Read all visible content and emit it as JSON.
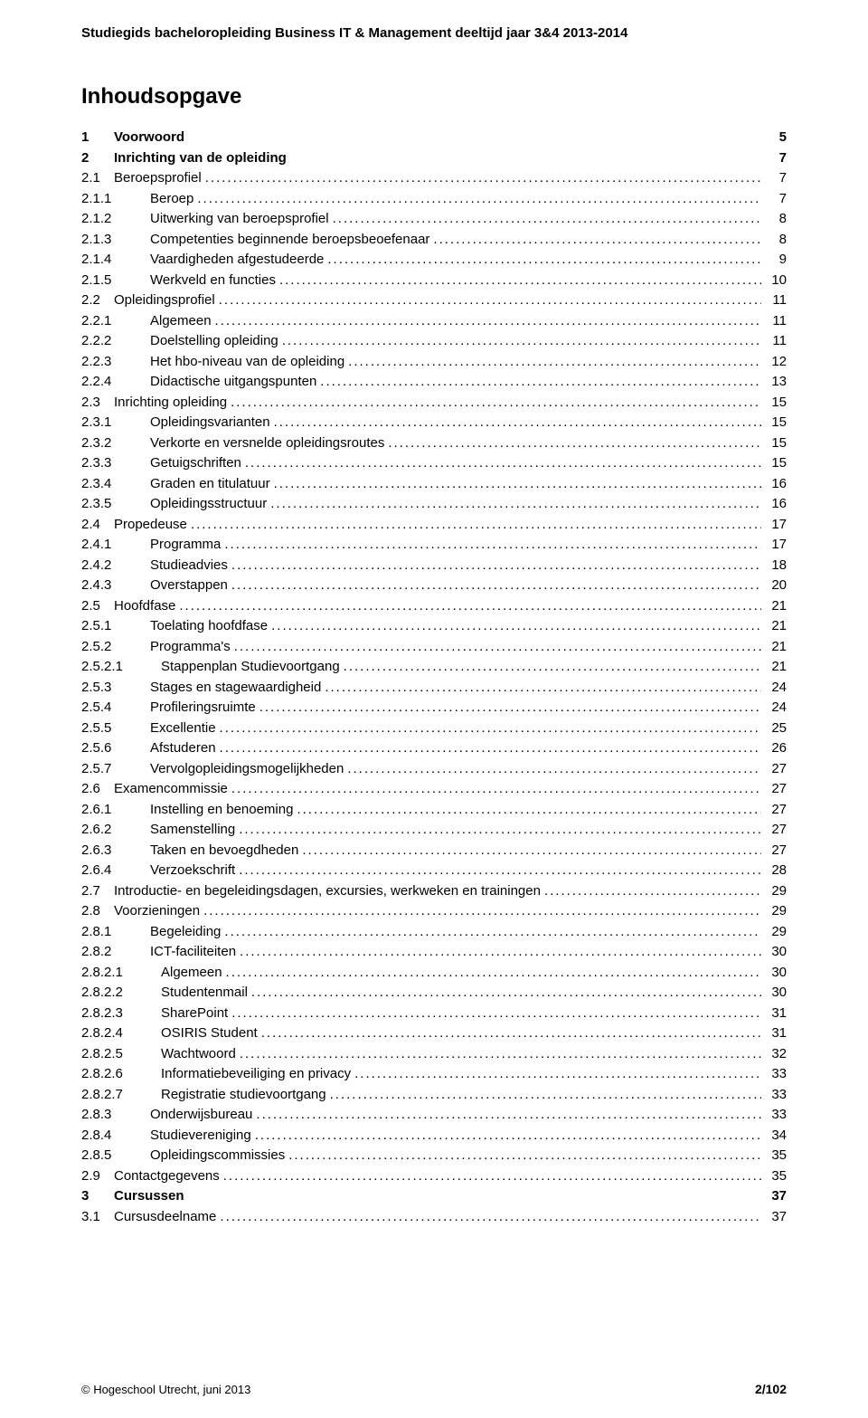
{
  "header": "Studiegids bacheloropleiding Business IT & Management deeltijd jaar 3&4 2013-2014",
  "toc_title": "Inhoudsopgave",
  "footer_left": "© Hogeschool Utrecht, juni 2013",
  "footer_right": "2/102",
  "entries": [
    {
      "num": "1",
      "label": "Voorwoord",
      "page": "5",
      "bold": true,
      "level": 0,
      "leader": false
    },
    {
      "num": "2",
      "label": "Inrichting van de opleiding",
      "page": "7",
      "bold": true,
      "level": 0,
      "leader": false
    },
    {
      "num": "2.1",
      "label": "Beroepsprofiel",
      "page": "7",
      "bold": false,
      "level": 1,
      "leader": true
    },
    {
      "num": "2.1.1",
      "label": "Beroep",
      "page": "7",
      "bold": false,
      "level": 2,
      "leader": true
    },
    {
      "num": "2.1.2",
      "label": "Uitwerking van beroepsprofiel",
      "page": "8",
      "bold": false,
      "level": 2,
      "leader": true
    },
    {
      "num": "2.1.3",
      "label": "Competenties beginnende beroepsbeoefenaar",
      "page": "8",
      "bold": false,
      "level": 2,
      "leader": true
    },
    {
      "num": "2.1.4",
      "label": "Vaardigheden afgestudeerde",
      "page": "9",
      "bold": false,
      "level": 2,
      "leader": true
    },
    {
      "num": "2.1.5",
      "label": "Werkveld en functies",
      "page": "10",
      "bold": false,
      "level": 2,
      "leader": true
    },
    {
      "num": "2.2",
      "label": "Opleidingsprofiel",
      "page": "11",
      "bold": false,
      "level": 1,
      "leader": true
    },
    {
      "num": "2.2.1",
      "label": "Algemeen",
      "page": "11",
      "bold": false,
      "level": 2,
      "leader": true
    },
    {
      "num": "2.2.2",
      "label": "Doelstelling opleiding",
      "page": "11",
      "bold": false,
      "level": 2,
      "leader": true
    },
    {
      "num": "2.2.3",
      "label": "Het hbo-niveau van de opleiding",
      "page": "12",
      "bold": false,
      "level": 2,
      "leader": true
    },
    {
      "num": "2.2.4",
      "label": "Didactische uitgangspunten",
      "page": "13",
      "bold": false,
      "level": 2,
      "leader": true
    },
    {
      "num": "2.3",
      "label": "Inrichting opleiding",
      "page": "15",
      "bold": false,
      "level": 1,
      "leader": true
    },
    {
      "num": "2.3.1",
      "label": "Opleidingsvarianten",
      "page": "15",
      "bold": false,
      "level": 2,
      "leader": true
    },
    {
      "num": "2.3.2",
      "label": "Verkorte en versnelde opleidingsroutes",
      "page": "15",
      "bold": false,
      "level": 2,
      "leader": true
    },
    {
      "num": "2.3.3",
      "label": "Getuigschriften",
      "page": "15",
      "bold": false,
      "level": 2,
      "leader": true
    },
    {
      "num": "2.3.4",
      "label": "Graden en titulatuur",
      "page": "16",
      "bold": false,
      "level": 2,
      "leader": true
    },
    {
      "num": "2.3.5",
      "label": "Opleidingsstructuur",
      "page": "16",
      "bold": false,
      "level": 2,
      "leader": true
    },
    {
      "num": "2.4",
      "label": "Propedeuse",
      "page": "17",
      "bold": false,
      "level": 1,
      "leader": true
    },
    {
      "num": "2.4.1",
      "label": "Programma",
      "page": "17",
      "bold": false,
      "level": 2,
      "leader": true
    },
    {
      "num": "2.4.2",
      "label": "Studieadvies",
      "page": "18",
      "bold": false,
      "level": 2,
      "leader": true
    },
    {
      "num": "2.4.3",
      "label": "Overstappen",
      "page": "20",
      "bold": false,
      "level": 2,
      "leader": true
    },
    {
      "num": "2.5",
      "label": "Hoofdfase",
      "page": "21",
      "bold": false,
      "level": 1,
      "leader": true
    },
    {
      "num": "2.5.1",
      "label": "Toelating hoofdfase",
      "page": "21",
      "bold": false,
      "level": 2,
      "leader": true
    },
    {
      "num": "2.5.2",
      "label": "Programma's",
      "page": "21",
      "bold": false,
      "level": 2,
      "leader": true
    },
    {
      "num": "2.5.2.1",
      "label": "Stappenplan Studievoortgang",
      "page": "21",
      "bold": false,
      "level": 3,
      "leader": true
    },
    {
      "num": "2.5.3",
      "label": "Stages en stagewaardigheid",
      "page": "24",
      "bold": false,
      "level": 2,
      "leader": true
    },
    {
      "num": "2.5.4",
      "label": "Profileringsruimte",
      "page": "24",
      "bold": false,
      "level": 2,
      "leader": true
    },
    {
      "num": "2.5.5",
      "label": "Excellentie",
      "page": "25",
      "bold": false,
      "level": 2,
      "leader": true
    },
    {
      "num": "2.5.6",
      "label": "Afstuderen",
      "page": "26",
      "bold": false,
      "level": 2,
      "leader": true
    },
    {
      "num": "2.5.7",
      "label": "Vervolgopleidingsmogelijkheden",
      "page": "27",
      "bold": false,
      "level": 2,
      "leader": true
    },
    {
      "num": "2.6",
      "label": "Examencommissie",
      "page": "27",
      "bold": false,
      "level": 1,
      "leader": true
    },
    {
      "num": "2.6.1",
      "label": "Instelling en benoeming",
      "page": "27",
      "bold": false,
      "level": 2,
      "leader": true
    },
    {
      "num": "2.6.2",
      "label": "Samenstelling",
      "page": "27",
      "bold": false,
      "level": 2,
      "leader": true
    },
    {
      "num": "2.6.3",
      "label": "Taken en bevoegdheden",
      "page": "27",
      "bold": false,
      "level": 2,
      "leader": true
    },
    {
      "num": "2.6.4",
      "label": "Verzoekschrift",
      "page": "28",
      "bold": false,
      "level": 2,
      "leader": true
    },
    {
      "num": "2.7",
      "label": "Introductie- en begeleidingsdagen, excursies, werkweken en trainingen",
      "page": "29",
      "bold": false,
      "level": 1,
      "leader": true
    },
    {
      "num": "2.8",
      "label": "Voorzieningen",
      "page": "29",
      "bold": false,
      "level": 1,
      "leader": true
    },
    {
      "num": "2.8.1",
      "label": "Begeleiding",
      "page": "29",
      "bold": false,
      "level": 2,
      "leader": true
    },
    {
      "num": "2.8.2",
      "label": "ICT-faciliteiten",
      "page": "30",
      "bold": false,
      "level": 2,
      "leader": true
    },
    {
      "num": "2.8.2.1",
      "label": "Algemeen",
      "page": "30",
      "bold": false,
      "level": 3,
      "leader": true
    },
    {
      "num": "2.8.2.2",
      "label": "Studentenmail",
      "page": "30",
      "bold": false,
      "level": 3,
      "leader": true
    },
    {
      "num": "2.8.2.3",
      "label": "SharePoint",
      "page": "31",
      "bold": false,
      "level": 3,
      "leader": true
    },
    {
      "num": "2.8.2.4",
      "label": "OSIRIS Student",
      "page": "31",
      "bold": false,
      "level": 3,
      "leader": true
    },
    {
      "num": "2.8.2.5",
      "label": "Wachtwoord",
      "page": "32",
      "bold": false,
      "level": 3,
      "leader": true
    },
    {
      "num": "2.8.2.6",
      "label": "Informatiebeveiliging en privacy",
      "page": "33",
      "bold": false,
      "level": 3,
      "leader": true
    },
    {
      "num": "2.8.2.7",
      "label": "Registratie studievoortgang",
      "page": "33",
      "bold": false,
      "level": 3,
      "leader": true
    },
    {
      "num": "2.8.3",
      "label": "Onderwijsbureau",
      "page": "33",
      "bold": false,
      "level": 2,
      "leader": true
    },
    {
      "num": "2.8.4",
      "label": "Studievereniging",
      "page": "34",
      "bold": false,
      "level": 2,
      "leader": true
    },
    {
      "num": "2.8.5",
      "label": "Opleidingscommissies",
      "page": "35",
      "bold": false,
      "level": 2,
      "leader": true
    },
    {
      "num": "2.9",
      "label": "Contactgegevens",
      "page": "35",
      "bold": false,
      "level": 1,
      "leader": true
    },
    {
      "num": "3",
      "label": "Cursussen",
      "page": "37",
      "bold": true,
      "level": 0,
      "leader": false
    },
    {
      "num": "3.1",
      "label": "Cursusdeelname",
      "page": "37",
      "bold": false,
      "level": 1,
      "leader": true
    }
  ]
}
